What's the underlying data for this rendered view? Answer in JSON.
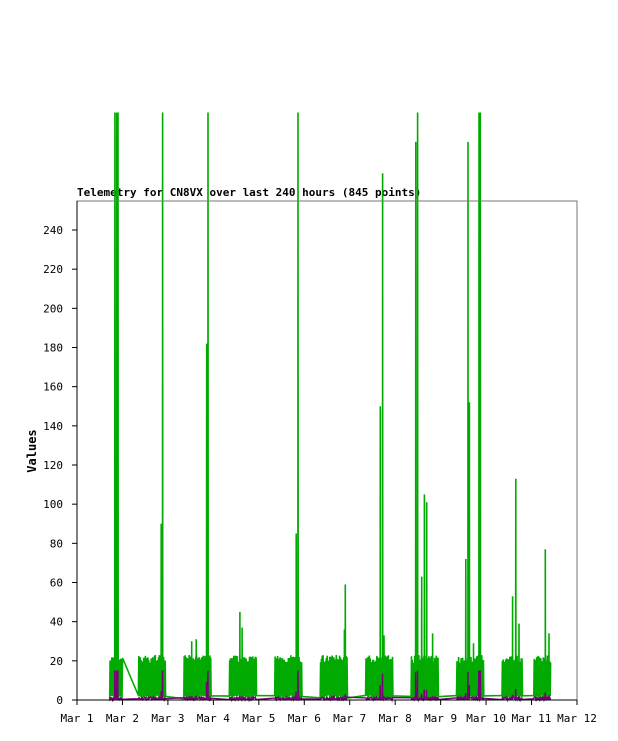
{
  "chart_data": {
    "type": "line",
    "title": "Telemetry for CN8VX over last 240 hours (845 points)",
    "xlabel": "",
    "ylabel": "Values",
    "x_ticks": [
      "Mar 1",
      "Mar 2",
      "Mar 3",
      "Mar 4",
      "Mar 5",
      "Mar 6",
      "Mar 7",
      "Mar 8",
      "Mar 9",
      "Mar 10",
      "Mar 11",
      "Mar 12"
    ],
    "y_ticks": [
      0,
      20,
      40,
      60,
      80,
      100,
      120,
      140,
      160,
      180,
      200,
      220,
      240
    ],
    "xlim_days": [
      0,
      11
    ],
    "ylim": [
      0,
      255
    ],
    "grid": false,
    "colors": {
      "green_series": "#00aa00",
      "purple_series": "#770077",
      "axis": "#000000"
    },
    "segments": [
      {
        "start": 0.72,
        "end": 1.0,
        "spikes": [
          [
            0.83,
            300
          ],
          [
            0.87,
            300
          ],
          [
            0.9,
            300
          ]
        ]
      },
      {
        "start": 1.35,
        "end": 1.95,
        "spikes": [
          [
            1.85,
            90
          ],
          [
            1.88,
            300
          ]
        ]
      },
      {
        "start": 2.35,
        "end": 2.95,
        "spikes": [
          [
            2.52,
            30
          ],
          [
            2.62,
            31
          ],
          [
            2.85,
            182
          ],
          [
            2.88,
            300
          ]
        ]
      },
      {
        "start": 3.35,
        "end": 3.95,
        "spikes": [
          [
            3.58,
            45
          ],
          [
            3.63,
            37
          ]
        ]
      },
      {
        "start": 4.35,
        "end": 4.95,
        "spikes": [
          [
            4.82,
            85
          ],
          [
            4.86,
            300
          ]
        ]
      },
      {
        "start": 5.35,
        "end": 5.95,
        "spikes": [
          [
            5.9,
            59
          ],
          [
            5.88,
            36
          ]
        ]
      },
      {
        "start": 6.35,
        "end": 6.95,
        "spikes": [
          [
            6.67,
            150
          ],
          [
            6.72,
            269
          ],
          [
            6.75,
            33
          ]
        ]
      },
      {
        "start": 7.35,
        "end": 7.95,
        "spikes": [
          [
            7.45,
            285
          ],
          [
            7.49,
            300
          ],
          [
            7.58,
            63
          ],
          [
            7.64,
            105
          ],
          [
            7.69,
            101
          ],
          [
            7.82,
            34
          ]
        ]
      },
      {
        "start": 8.35,
        "end": 8.95,
        "spikes": [
          [
            8.55,
            72
          ],
          [
            8.6,
            285
          ],
          [
            8.63,
            152
          ],
          [
            8.72,
            29
          ],
          [
            8.84,
            300
          ],
          [
            8.87,
            300
          ]
        ]
      },
      {
        "start": 9.35,
        "end": 9.8,
        "spikes": [
          [
            9.58,
            53
          ],
          [
            9.65,
            113
          ],
          [
            9.72,
            39
          ]
        ]
      },
      {
        "start": 10.05,
        "end": 10.42,
        "spikes": [
          [
            10.3,
            77
          ],
          [
            10.38,
            34
          ]
        ]
      }
    ]
  }
}
